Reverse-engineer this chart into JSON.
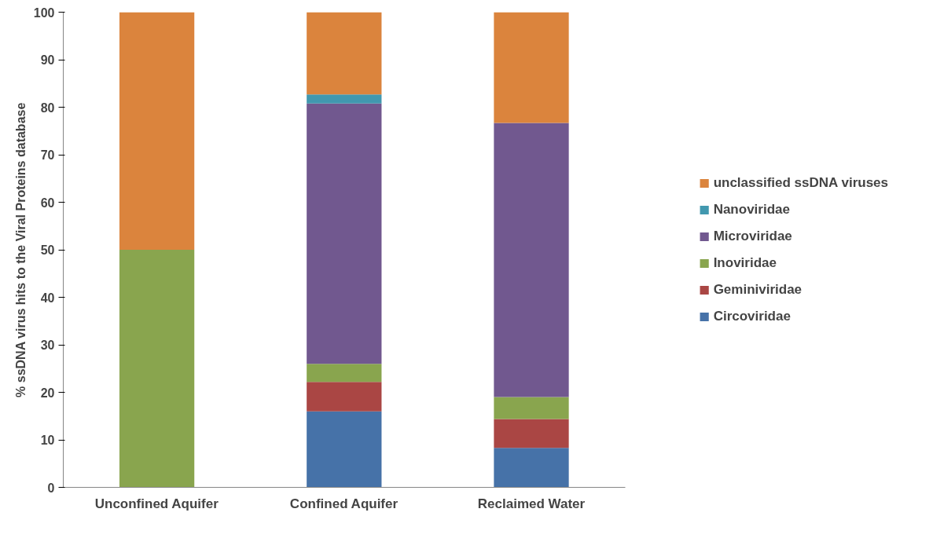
{
  "chart_data": {
    "type": "bar",
    "stacked": true,
    "ylabel": "% ssDNA virus hits to the Viral Proteins database",
    "categories": [
      "Unconfined Aquifer",
      "Confined Aquifer",
      "Reclaimed Water"
    ],
    "series": [
      {
        "name": "Circoviridae",
        "color": "#4672a8",
        "values": [
          null,
          16,
          8.3
        ]
      },
      {
        "name": "Geminiviridae",
        "color": "#aa4644",
        "values": [
          null,
          6.2,
          6.1
        ]
      },
      {
        "name": "Inoviridae",
        "color": "#89a54e",
        "values": [
          50,
          3.8,
          4.6
        ]
      },
      {
        "name": "Microviridae",
        "color": "#71588f",
        "values": [
          null,
          54.8,
          57.7
        ]
      },
      {
        "name": "Nanoviridae",
        "color": "#4198af",
        "values": [
          null,
          1.9,
          null
        ]
      },
      {
        "name": "unclassified ssDNA viruses",
        "color": "#db843d",
        "values": [
          50,
          17.3,
          23.3
        ]
      }
    ],
    "ylim": [
      0,
      100
    ],
    "yticks": [
      0,
      10,
      20,
      30,
      40,
      50,
      60,
      70,
      80,
      90,
      100
    ],
    "grid": false,
    "legend": "right"
  }
}
